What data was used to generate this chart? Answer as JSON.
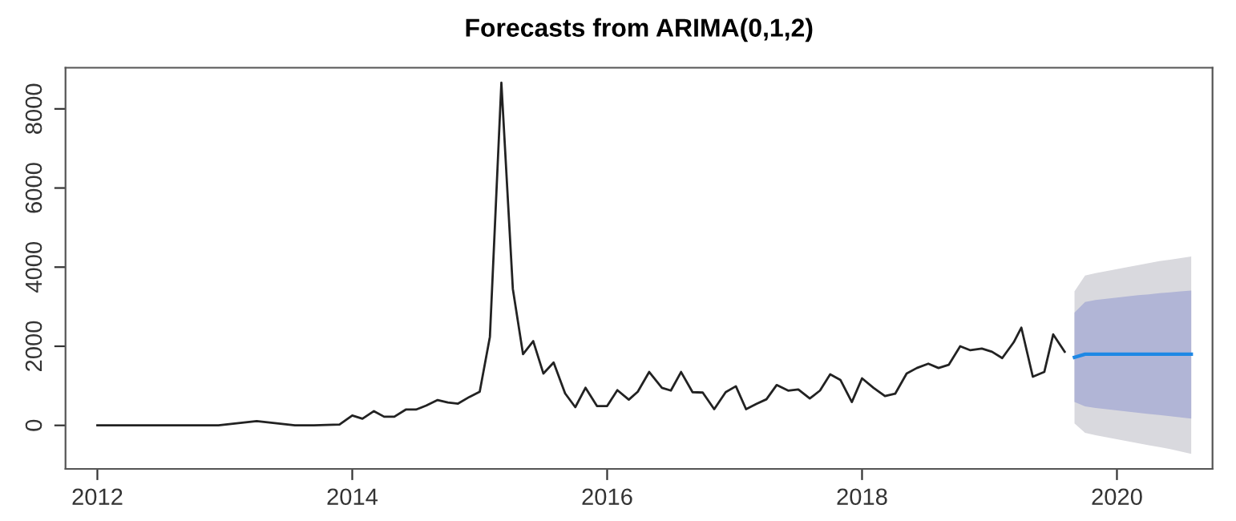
{
  "chart_data": {
    "type": "line",
    "title": "Forecasts from ARIMA(0,1,2)",
    "xlim": [
      2011.75,
      2020.75
    ],
    "xticks": [
      2012,
      2014,
      2016,
      2018,
      2020
    ],
    "ylim": [
      -1100,
      9040
    ],
    "yticks": [
      0,
      2000,
      4000,
      6000,
      8000
    ],
    "grid": false,
    "series": [
      {
        "color": "#222222",
        "x": [
          2012.0,
          2012.5,
          2012.95,
          2013.25,
          2013.55,
          2013.7,
          2013.9,
          2014.0,
          2014.08,
          2014.17,
          2014.25,
          2014.33,
          2014.42,
          2014.5,
          2014.58,
          2014.67,
          2014.75,
          2014.83,
          2014.92,
          2015.0,
          2015.08,
          2015.17,
          2015.26,
          2015.34,
          2015.42,
          2015.5,
          2015.58,
          2015.67,
          2015.75,
          2015.83,
          2015.92,
          2016.0,
          2016.08,
          2016.17,
          2016.24,
          2016.33,
          2016.43,
          2016.5,
          2016.58,
          2016.67,
          2016.75,
          2016.84,
          2016.93,
          2017.01,
          2017.09,
          2017.17,
          2017.25,
          2017.33,
          2017.42,
          2017.5,
          2017.59,
          2017.67,
          2017.75,
          2017.83,
          2017.92,
          2018.0,
          2018.09,
          2018.18,
          2018.26,
          2018.35,
          2018.43,
          2018.52,
          2018.6,
          2018.68,
          2018.77,
          2018.85,
          2018.94,
          2019.02,
          2019.1,
          2019.19,
          2019.25,
          2019.34,
          2019.43,
          2019.5,
          2019.59
        ],
        "values": [
          0,
          0,
          0,
          110,
          0,
          0,
          20,
          250,
          170,
          360,
          220,
          220,
          400,
          400,
          500,
          640,
          580,
          550,
          720,
          850,
          2240,
          8660,
          3450,
          1800,
          2130,
          1310,
          1590,
          810,
          460,
          950,
          490,
          490,
          890,
          650,
          850,
          1350,
          950,
          880,
          1350,
          840,
          830,
          410,
          840,
          990,
          410,
          540,
          660,
          1020,
          880,
          910,
          680,
          880,
          1290,
          1150,
          590,
          1190,
          950,
          740,
          800,
          1310,
          1450,
          1560,
          1450,
          1530,
          2000,
          1900,
          1940,
          1860,
          1700,
          2100,
          2470,
          1230,
          1350,
          2300,
          1860
        ]
      },
      {
        "color": "#d9d9de",
        "x": [
          2019.667,
          2019.75,
          2019.833,
          2019.917,
          2020.0,
          2020.083,
          2020.167,
          2020.25,
          2020.333,
          2020.417,
          2020.5,
          2020.583
        ],
        "values": [
          null,
          null,
          null,
          null,
          null,
          null,
          null,
          null,
          null,
          null,
          null,
          null
        ],
        "lower": [
          50,
          -190,
          -250,
          -300,
          -350,
          -400,
          -450,
          -500,
          -550,
          -600,
          -660,
          -720
        ],
        "upper": [
          3390,
          3790,
          3850,
          3900,
          3950,
          4000,
          4050,
          4100,
          4150,
          4190,
          4230,
          4270
        ]
      },
      {
        "color": "#b1b5d6",
        "x": [
          2019.667,
          2019.75,
          2019.833,
          2019.917,
          2020.0,
          2020.083,
          2020.167,
          2020.25,
          2020.333,
          2020.417,
          2020.5,
          2020.583
        ],
        "values": [
          null,
          null,
          null,
          null,
          null,
          null,
          null,
          null,
          null,
          null,
          null,
          null
        ],
        "lower": [
          590,
          480,
          440,
          410,
          380,
          350,
          320,
          290,
          260,
          230,
          200,
          170
        ],
        "upper": [
          2850,
          3120,
          3170,
          3200,
          3230,
          3260,
          3290,
          3310,
          3340,
          3360,
          3390,
          3410
        ]
      },
      {
        "color": "#1e88e5",
        "x": [
          2019.667,
          2019.75,
          2019.833,
          2019.917,
          2020.0,
          2020.083,
          2020.167,
          2020.25,
          2020.333,
          2020.417,
          2020.5,
          2020.583
        ],
        "values": [
          1720,
          1800,
          1800,
          1800,
          1800,
          1800,
          1800,
          1800,
          1800,
          1800,
          1800,
          1800
        ]
      }
    ]
  }
}
